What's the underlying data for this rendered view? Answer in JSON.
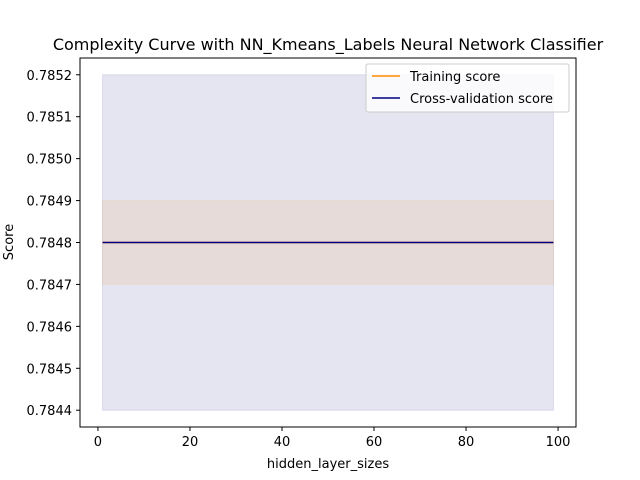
{
  "chart_data": {
    "type": "line",
    "title": "Complexity Curve with NN_Kmeans_Labels Neural Network Classifier",
    "xlabel": "hidden_layer_sizes",
    "ylabel": "Score",
    "xlim": [
      -3.9,
      103.9
    ],
    "ylim": [
      0.78436,
      0.78524
    ],
    "xticks": [
      0,
      20,
      40,
      60,
      80,
      100
    ],
    "yticks": [
      0.7844,
      0.7845,
      0.7846,
      0.7847,
      0.7848,
      0.7849,
      0.785,
      0.7851,
      0.7852
    ],
    "xtick_labels": [
      "0",
      "20",
      "40",
      "60",
      "80",
      "100"
    ],
    "ytick_labels": [
      "0.7844",
      "0.7845",
      "0.7846",
      "0.7847",
      "0.7848",
      "0.7849",
      "0.7850",
      "0.7851",
      "0.7852"
    ],
    "legend_position": "upper right",
    "grid": false,
    "series": [
      {
        "name": "Training score",
        "color": "#ff8c00",
        "x": [
          1,
          99
        ],
        "y": [
          0.7848,
          0.7848
        ],
        "band_lower": [
          0.7847,
          0.7847
        ],
        "band_upper": [
          0.7849,
          0.7849
        ]
      },
      {
        "name": "Cross-validation score",
        "color": "#000080",
        "x": [
          1,
          99
        ],
        "y": [
          0.7848,
          0.7848
        ],
        "band_lower": [
          0.7844,
          0.7844
        ],
        "band_upper": [
          0.7852,
          0.7852
        ]
      }
    ]
  }
}
